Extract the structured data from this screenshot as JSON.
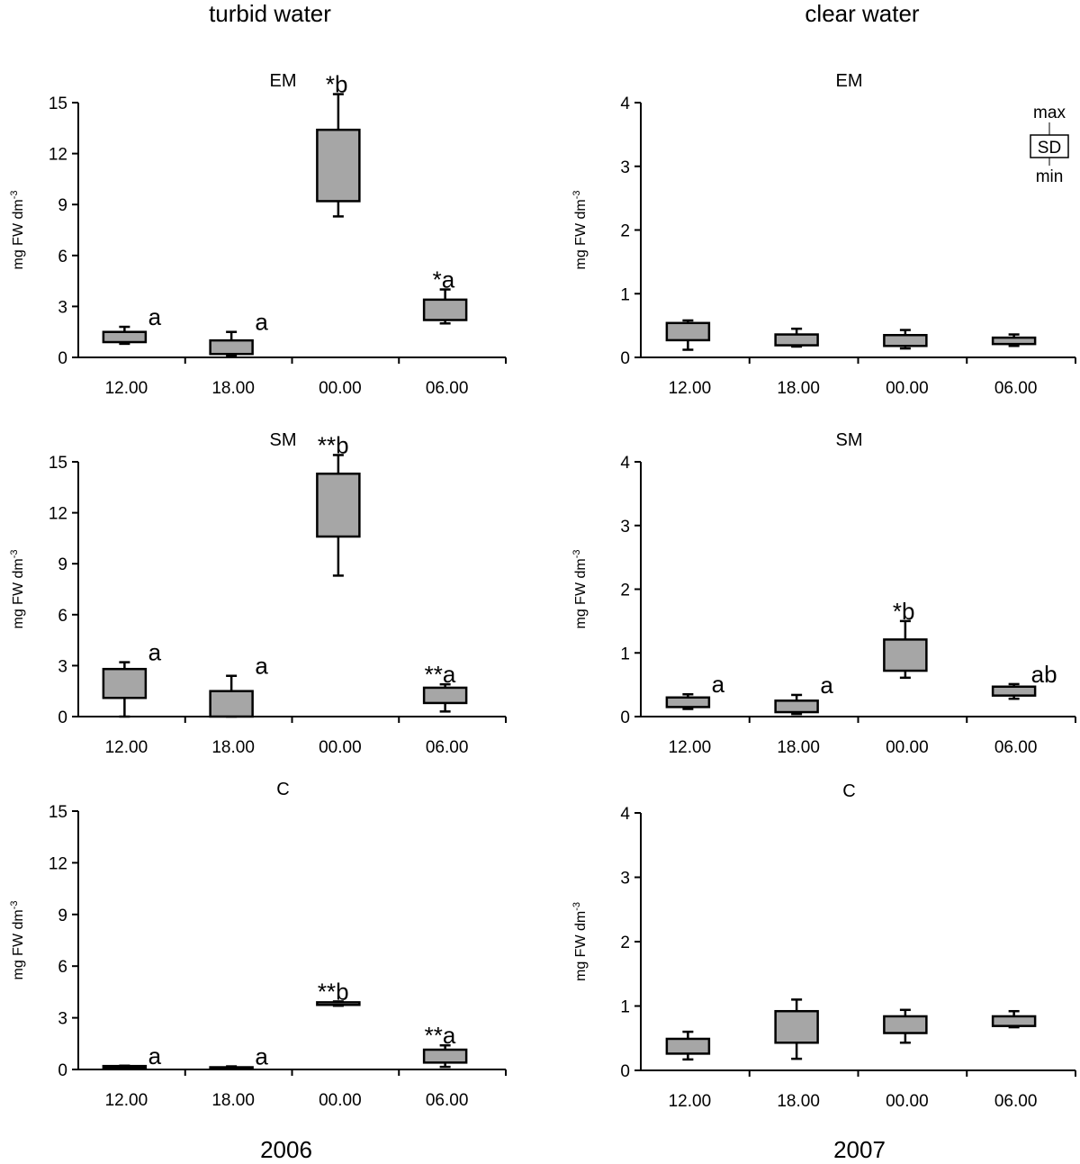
{
  "figure": {
    "col_titles": [
      "turbid water",
      "clear water"
    ],
    "year_labels": [
      "2006",
      "2007"
    ],
    "legend": {
      "max_label": "max",
      "sd_label": "SD",
      "min_label": "min"
    },
    "colors": {
      "box_fill": "#a6a6a6",
      "axis": "#000000"
    }
  },
  "chart_data": [
    {
      "type": "box",
      "title": "EM",
      "ylabel": "mg FW dm",
      "ylabel_superscript": "-3",
      "categories": [
        "12.00",
        "18.00",
        "00.00",
        "06.00"
      ],
      "ylim": [
        0,
        15
      ],
      "yticks": [
        0,
        3,
        6,
        9,
        12,
        15
      ],
      "boxes": [
        {
          "min": 0.8,
          "q1": 0.9,
          "q3": 1.5,
          "max": 1.8
        },
        {
          "min": 0.1,
          "q1": 0.2,
          "q3": 1.0,
          "max": 1.5
        },
        {
          "min": 8.3,
          "q1": 9.2,
          "q3": 13.4,
          "max": 15.5
        },
        {
          "min": 2.0,
          "q1": 2.2,
          "q3": 3.4,
          "max": 4.0
        }
      ],
      "annotations": [
        "a",
        "a",
        "*b",
        "*a"
      ]
    },
    {
      "type": "box",
      "title": "EM",
      "ylabel": "mg FW dm",
      "ylabel_superscript": "-3",
      "categories": [
        "12.00",
        "18.00",
        "00.00",
        "06.00"
      ],
      "ylim": [
        0,
        4
      ],
      "yticks": [
        0,
        1,
        2,
        3,
        4
      ],
      "boxes": [
        {
          "min": 0.12,
          "q1": 0.27,
          "q3": 0.54,
          "max": 0.58
        },
        {
          "min": 0.17,
          "q1": 0.19,
          "q3": 0.36,
          "max": 0.45
        },
        {
          "min": 0.14,
          "q1": 0.18,
          "q3": 0.35,
          "max": 0.43
        },
        {
          "min": 0.18,
          "q1": 0.21,
          "q3": 0.31,
          "max": 0.36
        }
      ],
      "annotations": [
        "",
        "",
        "",
        ""
      ],
      "legend": true
    },
    {
      "type": "box",
      "title": "SM",
      "ylabel": "mg FW dm",
      "ylabel_superscript": "-3",
      "categories": [
        "12.00",
        "18.00",
        "00.00",
        "06.00"
      ],
      "ylim": [
        0,
        15
      ],
      "yticks": [
        0,
        3,
        6,
        9,
        12,
        15
      ],
      "boxes": [
        {
          "min": 0.0,
          "q1": 1.1,
          "q3": 2.8,
          "max": 3.2
        },
        {
          "min": 0.0,
          "q1": 0.0,
          "q3": 1.5,
          "max": 2.4
        },
        {
          "min": 8.3,
          "q1": 10.6,
          "q3": 14.3,
          "max": 15.4
        },
        {
          "min": 0.3,
          "q1": 0.8,
          "q3": 1.7,
          "max": 1.9
        }
      ],
      "annotations": [
        "a",
        "a",
        "**b",
        "**a"
      ]
    },
    {
      "type": "box",
      "title": "SM",
      "ylabel": "mg FW dm",
      "ylabel_superscript": "-3",
      "categories": [
        "12.00",
        "18.00",
        "00.00",
        "06.00"
      ],
      "ylim": [
        0,
        4
      ],
      "yticks": [
        0,
        1,
        2,
        3,
        4
      ],
      "boxes": [
        {
          "min": 0.12,
          "q1": 0.15,
          "q3": 0.3,
          "max": 0.35
        },
        {
          "min": 0.04,
          "q1": 0.07,
          "q3": 0.25,
          "max": 0.34
        },
        {
          "min": 0.61,
          "q1": 0.72,
          "q3": 1.21,
          "max": 1.5
        },
        {
          "min": 0.28,
          "q1": 0.33,
          "q3": 0.47,
          "max": 0.51
        }
      ],
      "annotations": [
        "a",
        "a",
        "*b",
        "ab"
      ]
    },
    {
      "type": "box",
      "title": "C",
      "ylabel": "mg FW dm",
      "ylabel_superscript": "-3",
      "categories": [
        "12.00",
        "18.00",
        "00.00",
        "06.00"
      ],
      "ylim": [
        0,
        15
      ],
      "yticks": [
        0,
        3,
        6,
        9,
        12,
        15
      ],
      "boxes": [
        {
          "min": 0.08,
          "q1": 0.1,
          "q3": 0.2,
          "max": 0.22
        },
        {
          "min": 0.03,
          "q1": 0.05,
          "q3": 0.13,
          "max": 0.18
        },
        {
          "min": 3.7,
          "q1": 3.75,
          "q3": 3.9,
          "max": 3.95
        },
        {
          "min": 0.15,
          "q1": 0.4,
          "q3": 1.15,
          "max": 1.4
        }
      ],
      "annotations": [
        "a",
        "a",
        "**b",
        "**a"
      ]
    },
    {
      "type": "box",
      "title": "C",
      "ylabel": "mg FW dm",
      "ylabel_superscript": "-3",
      "categories": [
        "12.00",
        "18.00",
        "00.00",
        "06.00"
      ],
      "ylim": [
        0,
        4
      ],
      "yticks": [
        0,
        1,
        2,
        3,
        4
      ],
      "boxes": [
        {
          "min": 0.17,
          "q1": 0.26,
          "q3": 0.49,
          "max": 0.6
        },
        {
          "min": 0.18,
          "q1": 0.43,
          "q3": 0.92,
          "max": 1.1
        },
        {
          "min": 0.43,
          "q1": 0.58,
          "q3": 0.84,
          "max": 0.94
        },
        {
          "min": 0.67,
          "q1": 0.69,
          "q3": 0.84,
          "max": 0.92
        }
      ],
      "annotations": [
        "",
        "",
        "",
        ""
      ]
    }
  ]
}
